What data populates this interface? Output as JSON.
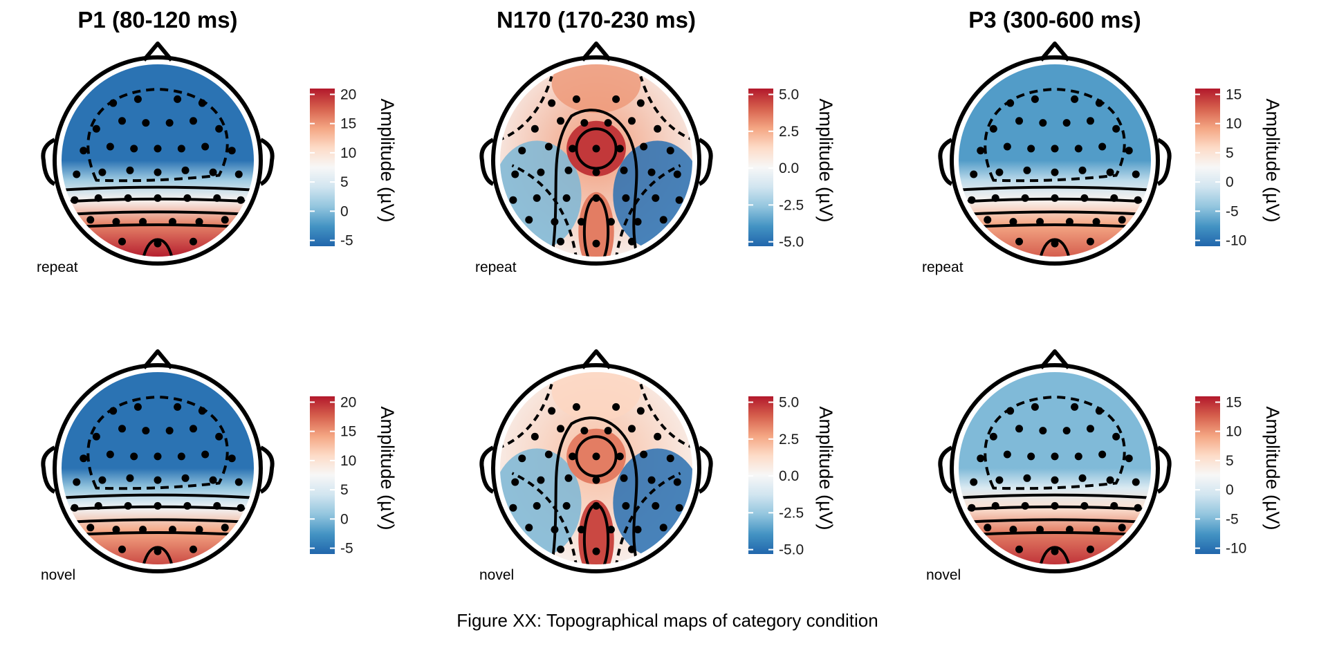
{
  "chart_data": {
    "type": "heatmap",
    "caption": "Figure XX: Topographical maps of category condition",
    "colormap": {
      "name": "RdBu (reversed)",
      "stops": [
        "#2166ac",
        "#4393c3",
        "#92c5de",
        "#d1e5f0",
        "#f7f7f7",
        "#fddbc7",
        "#f4a582",
        "#d6604d",
        "#b2182b"
      ]
    },
    "colorbar_title": "Amplitude (µV)",
    "columns": [
      {
        "title": "P1 (80-120 ms)",
        "colorbar": {
          "range": [
            -6,
            21
          ],
          "ticks": [
            -5,
            0,
            5,
            10,
            15,
            20
          ],
          "tick_labels": [
            "-5",
            "0",
            "5",
            "10",
            "15",
            "20"
          ]
        },
        "panels": [
          {
            "condition": "repeat",
            "front_value": -5,
            "back_value": 21
          },
          {
            "condition": "novel",
            "front_value": -5,
            "back_value": 19
          }
        ]
      },
      {
        "title": "N170 (170-230 ms)",
        "colorbar": {
          "range": [
            -5.3,
            5.4
          ],
          "ticks": [
            -5,
            -2.5,
            0,
            2.5,
            5
          ],
          "tick_labels": [
            "-5.0",
            "-2.5",
            "0.0",
            "2.5",
            "5.0"
          ]
        },
        "panels": [
          {
            "condition": "repeat",
            "front_value": 3,
            "center_value": 4.8,
            "occipital_value": 3.5,
            "lateral_value": -5
          },
          {
            "condition": "novel",
            "front_value": 1.5,
            "center_value": 3.5,
            "occipital_value": 4.5,
            "lateral_value": -5
          }
        ]
      },
      {
        "title": "P3 (300-600 ms)",
        "colorbar": {
          "range": [
            -11,
            16
          ],
          "ticks": [
            -10,
            -5,
            0,
            5,
            10,
            15
          ],
          "tick_labels": [
            "-10",
            "-5",
            "0",
            "5",
            "10",
            "15"
          ]
        },
        "panels": [
          {
            "condition": "repeat",
            "front_value": -7,
            "back_value": 13
          },
          {
            "condition": "novel",
            "front_value": -5,
            "back_value": 15
          }
        ]
      }
    ]
  }
}
